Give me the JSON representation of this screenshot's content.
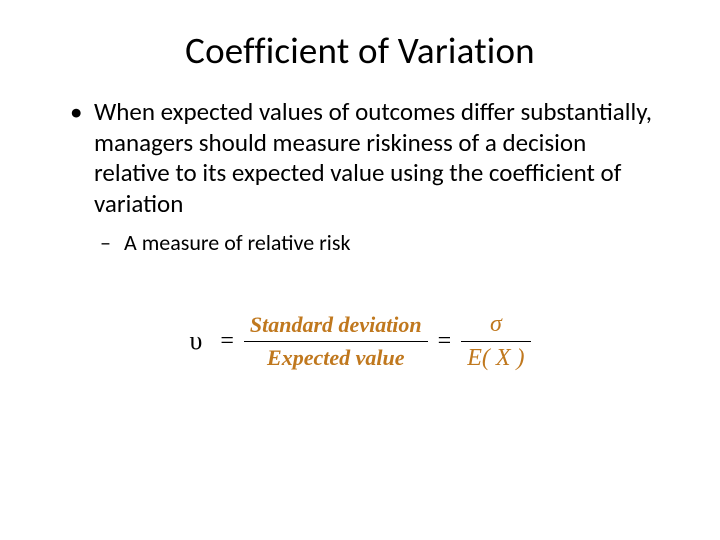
{
  "title": "Coefficient of Variation",
  "bullets": {
    "l1": "When expected values of outcomes differ substantially, managers should measure riskiness of a decision relative to its expected value using the coefficient of variation",
    "l2": "A measure of relative risk"
  },
  "formula": {
    "lhs_symbol": "υ",
    "eq": "=",
    "text_frac": {
      "numerator": "Standard deviation",
      "denominator": "Expected value",
      "color": "#c0781e"
    },
    "sym_frac": {
      "numerator": "σ",
      "denominator": "E( X )",
      "color": "#c0781e"
    }
  },
  "colors": {
    "text": "#000000",
    "accent": "#c0781e",
    "background": "#ffffff"
  }
}
